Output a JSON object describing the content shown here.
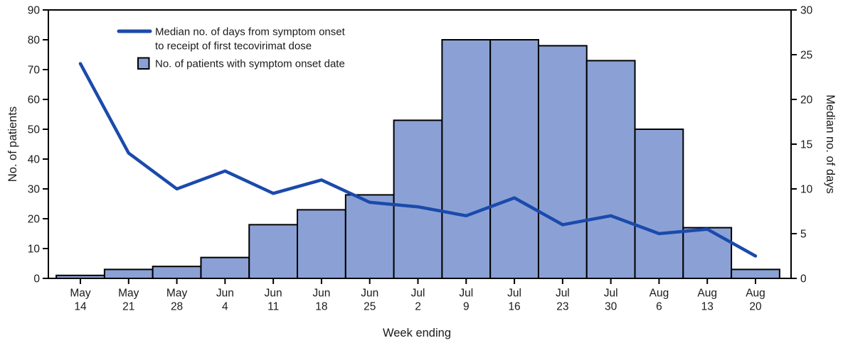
{
  "chart_data": {
    "type": "bar+line combo",
    "title": "",
    "xlabel": "Week ending",
    "categories": [
      "May 14",
      "May 21",
      "May 28",
      "Jun 4",
      "Jun 11",
      "Jun 18",
      "Jun 25",
      "Jul 2",
      "Jul 9",
      "Jul 16",
      "Jul 23",
      "Jul 30",
      "Aug 6",
      "Aug 13",
      "Aug 20"
    ],
    "left_axis": {
      "label": "No. of patients",
      "min": 0,
      "max": 90,
      "step": 10,
      "ticks": [
        0,
        10,
        20,
        30,
        40,
        50,
        60,
        70,
        80,
        90
      ]
    },
    "right_axis": {
      "label": "Median no. of days",
      "min": 0,
      "max": 30,
      "step": 5,
      "ticks": [
        0,
        5,
        10,
        15,
        20,
        25,
        30
      ]
    },
    "series": [
      {
        "name": "No. of patients with symptom onset date",
        "type": "bar",
        "axis": "left",
        "values": [
          1,
          3,
          4,
          7,
          18,
          23,
          28,
          53,
          80,
          80,
          78,
          73,
          50,
          17,
          3
        ]
      },
      {
        "name": "Median no. of days from symptom onset to receipt of first tecovirimat dose",
        "type": "line",
        "axis": "right",
        "values": [
          24,
          14,
          10,
          12,
          9.5,
          11,
          8.5,
          8,
          7,
          9,
          6,
          7,
          5,
          5.5,
          2.5
        ]
      }
    ],
    "legend": {
      "position": "top-left-inside",
      "items": [
        {
          "swatch": "line",
          "lines": [
            "Median no. of days from symptom onset",
            "to receipt of first tecovirimat dose"
          ]
        },
        {
          "swatch": "square",
          "lines": [
            "No. of patients with symptom onset date"
          ]
        }
      ]
    },
    "grid": false
  },
  "colors": {
    "line": "#1b4aac",
    "bar_fill": "#8ba1d5",
    "bar_stroke": "#000000",
    "axis": "#000000",
    "text": "#1a1a1a",
    "background": "#ffffff"
  }
}
